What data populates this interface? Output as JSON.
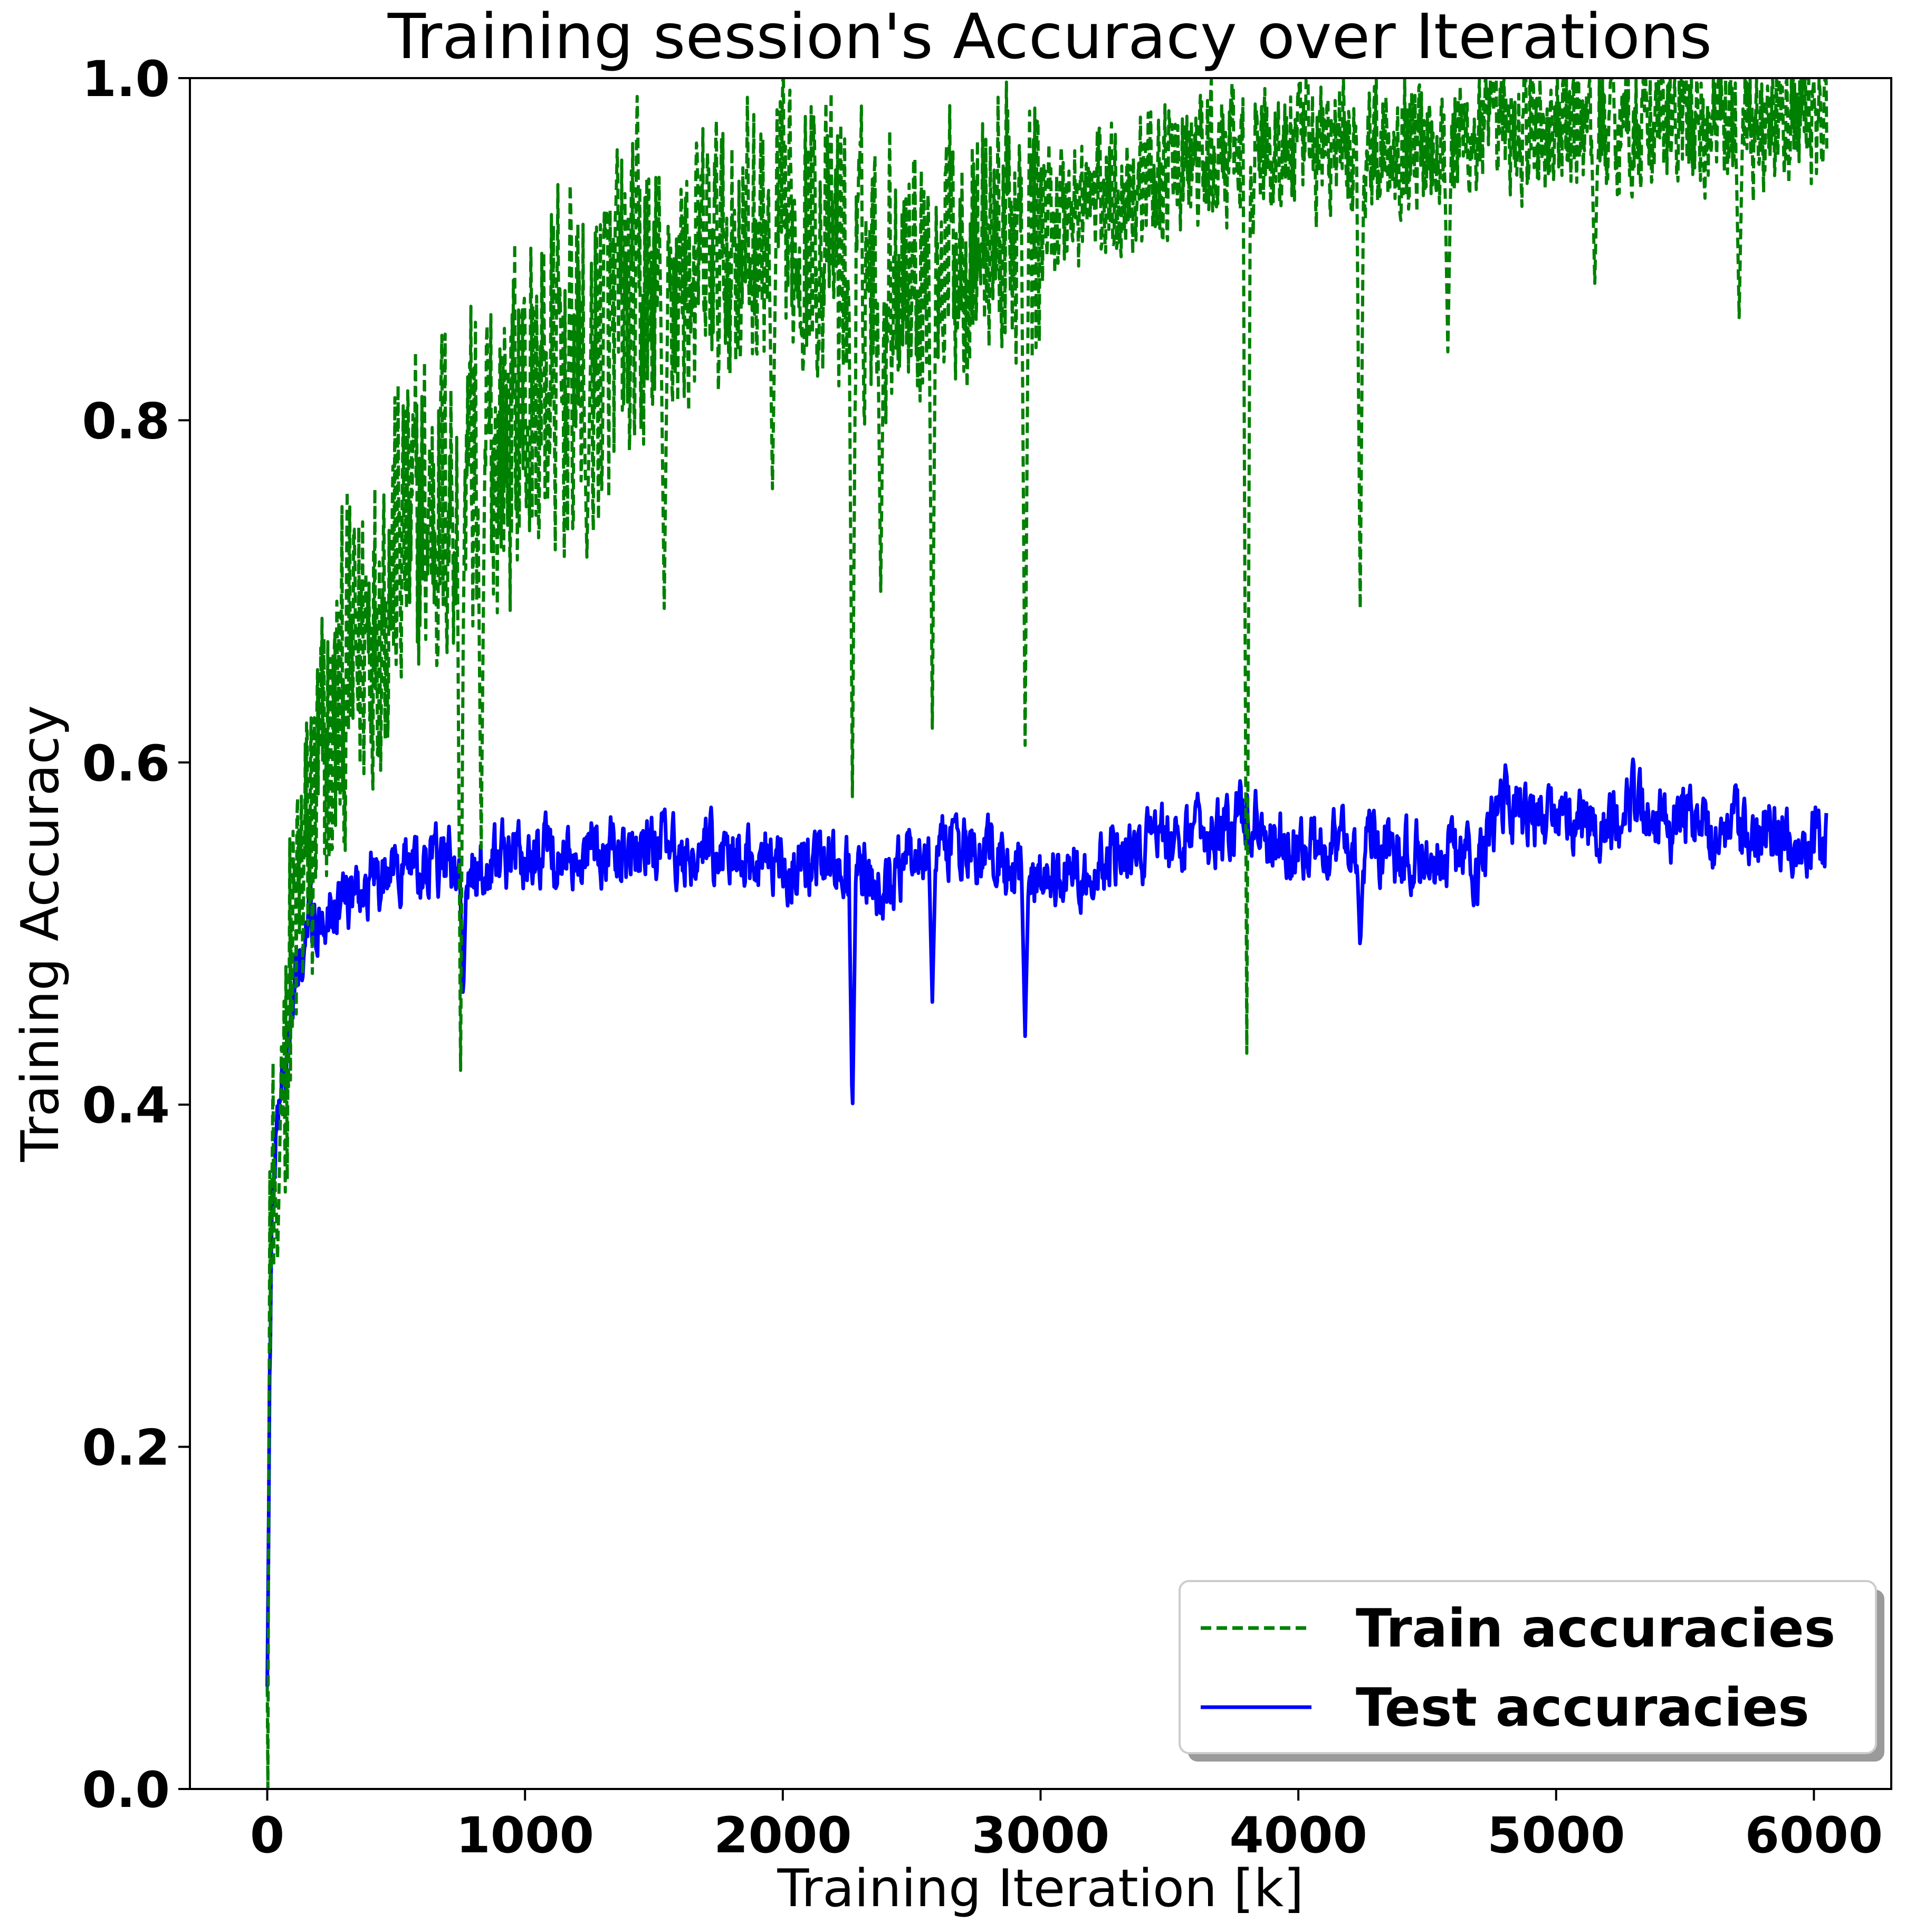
{
  "chart_data": {
    "type": "line",
    "title": "Training session's Accuracy over Iterations",
    "xlabel": "Training Iteration [k]",
    "ylabel": "Training Accuracy",
    "xlim": [
      -300,
      6300
    ],
    "ylim": [
      0.0,
      1.0
    ],
    "x_ticks": [
      0,
      1000,
      2000,
      3000,
      4000,
      5000,
      6000
    ],
    "y_ticks": [
      "0.0",
      "0.2",
      "0.4",
      "0.6",
      "0.8",
      "1.0"
    ],
    "grid": false,
    "legend_position": "lower-right",
    "series": [
      {
        "name": "Train accuracies",
        "color": "#008000",
        "style": "dashed",
        "anchors_x": [
          0,
          10,
          20,
          40,
          60,
          80,
          100,
          150,
          200,
          250,
          300,
          400,
          500,
          600,
          700,
          800,
          900,
          1000,
          1100,
          1200,
          1300,
          1400,
          1500,
          1600,
          1700,
          1800,
          1900,
          2000,
          2100,
          2200,
          2300,
          2400,
          2500,
          2600,
          2700,
          2800,
          2900,
          3000,
          3200,
          3400,
          3600,
          3800,
          4000,
          4200,
          4400,
          4600,
          4800,
          5000,
          5200,
          5400,
          5600,
          5800,
          6000,
          6050
        ],
        "anchors_y": [
          0.06,
          0.28,
          0.36,
          0.4,
          0.43,
          0.46,
          0.49,
          0.54,
          0.58,
          0.61,
          0.64,
          0.69,
          0.72,
          0.74,
          0.76,
          0.77,
          0.79,
          0.81,
          0.82,
          0.83,
          0.84,
          0.86,
          0.87,
          0.88,
          0.89,
          0.9,
          0.905,
          0.91,
          0.91,
          0.9,
          0.89,
          0.89,
          0.895,
          0.9,
          0.905,
          0.91,
          0.915,
          0.92,
          0.93,
          0.94,
          0.95,
          0.955,
          0.96,
          0.96,
          0.965,
          0.965,
          0.97,
          0.97,
          0.975,
          0.975,
          0.975,
          0.975,
          0.975,
          0.975
        ],
        "dips": [
          {
            "x": 40,
            "y": 0.31
          },
          {
            "x": 750,
            "y": 0.42
          },
          {
            "x": 830,
            "y": 0.55
          },
          {
            "x": 1240,
            "y": 0.72
          },
          {
            "x": 1540,
            "y": 0.69
          },
          {
            "x": 1960,
            "y": 0.76
          },
          {
            "x": 2270,
            "y": 0.58
          },
          {
            "x": 2380,
            "y": 0.7
          },
          {
            "x": 2580,
            "y": 0.62
          },
          {
            "x": 2940,
            "y": 0.61
          },
          {
            "x": 3800,
            "y": 0.43
          },
          {
            "x": 4240,
            "y": 0.69
          },
          {
            "x": 4580,
            "y": 0.84
          },
          {
            "x": 5150,
            "y": 0.88
          },
          {
            "x": 5710,
            "y": 0.86
          }
        ]
      },
      {
        "name": "Test accuracies",
        "color": "#0000ff",
        "style": "solid",
        "anchors_x": [
          0,
          10,
          20,
          40,
          60,
          80,
          100,
          150,
          200,
          300,
          400,
          500,
          700,
          1000,
          1300,
          1500,
          1700,
          2000,
          2300,
          2400,
          2500,
          2800,
          3000,
          3200,
          3500,
          3800,
          4000,
          4200,
          4500,
          4700,
          4800,
          5000,
          5200,
          5300,
          5400,
          5600,
          5800,
          6000,
          6050
        ],
        "anchors_y": [
          0.06,
          0.25,
          0.35,
          0.39,
          0.41,
          0.44,
          0.47,
          0.5,
          0.51,
          0.52,
          0.53,
          0.535,
          0.54,
          0.545,
          0.55,
          0.55,
          0.55,
          0.54,
          0.54,
          0.52,
          0.55,
          0.55,
          0.53,
          0.54,
          0.555,
          0.565,
          0.55,
          0.55,
          0.545,
          0.54,
          0.575,
          0.56,
          0.56,
          0.575,
          0.565,
          0.56,
          0.56,
          0.555,
          0.555
        ],
        "dips": [
          {
            "x": 760,
            "y": 0.46
          },
          {
            "x": 2270,
            "y": 0.39
          },
          {
            "x": 2580,
            "y": 0.46
          },
          {
            "x": 2940,
            "y": 0.44
          },
          {
            "x": 4240,
            "y": 0.49
          }
        ]
      }
    ]
  }
}
